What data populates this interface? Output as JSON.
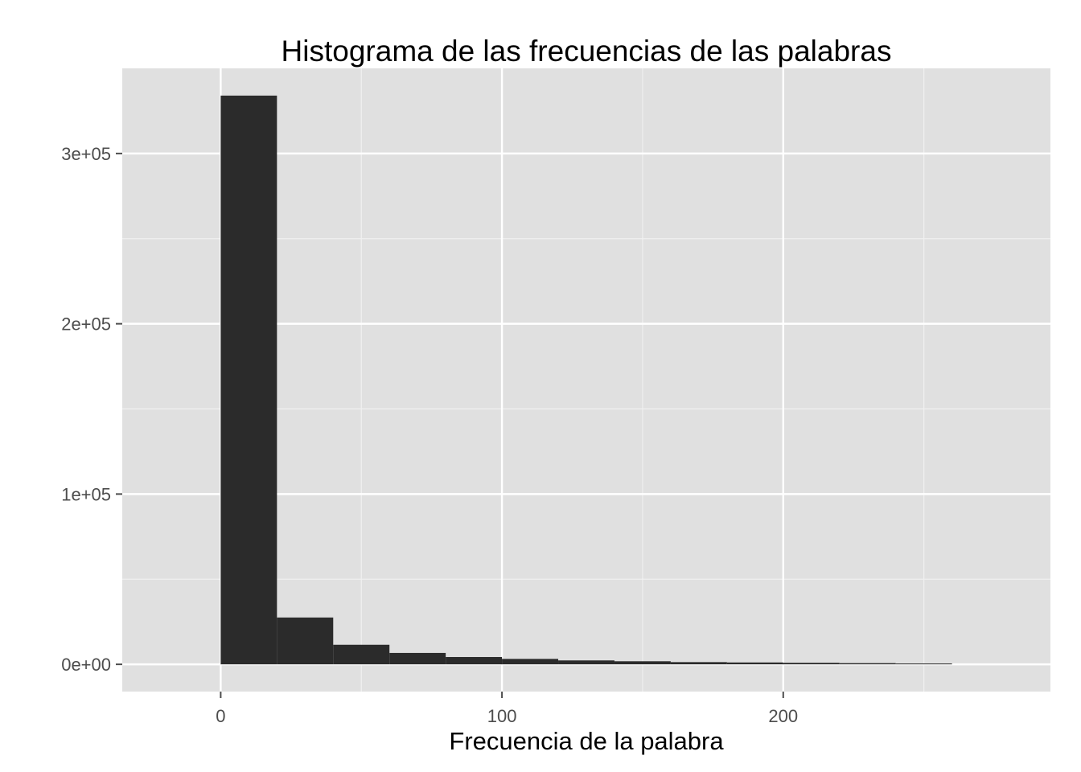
{
  "chart_data": {
    "type": "bar",
    "title": "Histograma de las frecuencias de las palabras",
    "xlabel": "Frecuencia de la palabra",
    "ylabel": "",
    "xlim": [
      -35,
      295
    ],
    "ylim": [
      -16000,
      350000
    ],
    "x_ticks": [
      0,
      100,
      200
    ],
    "x_tick_labels": [
      "0",
      "100",
      "200"
    ],
    "x_minor_ticks": [
      50,
      150,
      250
    ],
    "y_ticks": [
      0,
      100000,
      200000,
      300000
    ],
    "y_tick_labels": [
      "0e+00",
      "1e+05",
      "2e+05",
      "3e+05"
    ],
    "y_minor_ticks": [
      50000,
      150000,
      250000
    ],
    "grid": true,
    "bin_width": 20,
    "bins": [
      {
        "x0": 0,
        "x1": 20,
        "count": 334000
      },
      {
        "x0": 20,
        "x1": 40,
        "count": 27500
      },
      {
        "x0": 40,
        "x1": 60,
        "count": 11500
      },
      {
        "x0": 60,
        "x1": 80,
        "count": 6700
      },
      {
        "x0": 80,
        "x1": 100,
        "count": 4300
      },
      {
        "x0": 100,
        "x1": 120,
        "count": 3200
      },
      {
        "x0": 120,
        "x1": 140,
        "count": 2300
      },
      {
        "x0": 140,
        "x1": 160,
        "count": 1800
      },
      {
        "x0": 160,
        "x1": 180,
        "count": 1300
      },
      {
        "x0": 180,
        "x1": 200,
        "count": 1100
      },
      {
        "x0": 200,
        "x1": 220,
        "count": 900
      },
      {
        "x0": 220,
        "x1": 240,
        "count": 700
      },
      {
        "x0": 240,
        "x1": 260,
        "count": 500
      }
    ],
    "colors": {
      "panel": "#e0e0e0",
      "grid_major": "#ffffff",
      "grid_minor": "#f0f0f0",
      "bar": "#2b2b2b",
      "tick": "#4d4d4d"
    }
  }
}
